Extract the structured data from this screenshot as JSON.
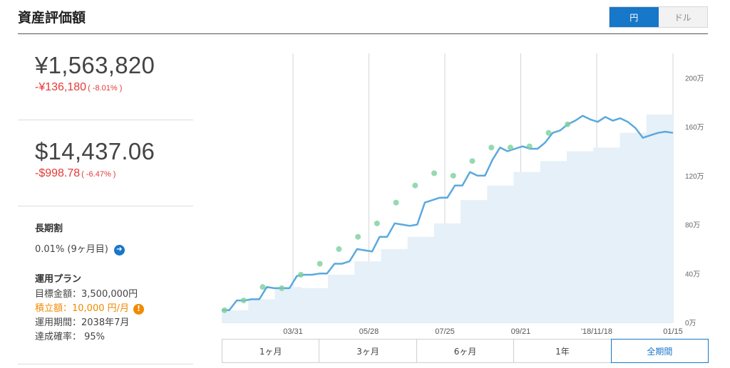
{
  "header": {
    "title": "資産評価額"
  },
  "currency_toggle": {
    "yen_label": "円",
    "usd_label": "ドル",
    "selected": "円",
    "accent_color": "#1777c8"
  },
  "jpy": {
    "value": "¥1,563,820",
    "change": "-¥136,180",
    "change_pct": "( -8.01% )"
  },
  "usd": {
    "value": "$14,437.06",
    "change": "-$998.78",
    "change_pct": "( -6.47% )"
  },
  "longterm": {
    "title": "長期割",
    "value": "0.01% (9ヶ月目)"
  },
  "plan": {
    "title": "運用プラン",
    "target": "目標金額：3,500,000円",
    "monthly": "積立額：10,000 円/月",
    "period": "運用期間：2038年7月",
    "probability": "達成確率：  95%"
  },
  "colors": {
    "negative": "#e53935",
    "warning": "#f08a00",
    "line": "#5aa9dd",
    "area": "#e6f0f8",
    "marker": "#7ccf9e"
  },
  "icons": {
    "longterm_arrow": "arrow-right-icon",
    "monthly_warning": "warning-icon"
  },
  "range_tabs": [
    "1ヶ月",
    "3ヶ月",
    "6ヶ月",
    "1年",
    "全期間"
  ],
  "range_selected": "全期間",
  "chart_data": {
    "type": "line",
    "x_ticks": [
      "03/31",
      "05/28",
      "07/25",
      "09/21",
      "'18/11/18",
      "01/15"
    ],
    "y_ticks": [
      "0万",
      "40万",
      "80万",
      "120万",
      "160万",
      "200万"
    ],
    "ylim": [
      0,
      2200000
    ],
    "y_unit": "万",
    "grid": "vertical",
    "series": [
      {
        "values": [
          100000,
          100000,
          180000,
          180000,
          190000,
          190000,
          290000,
          280000,
          280000,
          280000,
          380000,
          390000,
          390000,
          400000,
          400000,
          480000,
          480000,
          500000,
          600000,
          590000,
          580000,
          700000,
          700000,
          810000,
          800000,
          790000,
          800000,
          980000,
          1000000,
          1020000,
          1020000,
          1120000,
          1120000,
          1230000,
          1200000,
          1200000,
          1330000,
          1430000,
          1400000,
          1420000,
          1440000,
          1420000,
          1420000,
          1470000,
          1550000,
          1570000,
          1620000,
          1650000,
          1690000,
          1660000,
          1640000,
          1680000,
          1650000,
          1670000,
          1640000,
          1590000,
          1510000,
          1530000,
          1550000,
          1560000,
          1550000
        ]
      }
    ],
    "deposit_levels": [
      100000,
      190000,
      290000,
      280000,
      390000,
      500000,
      600000,
      700000,
      810000,
      1000000,
      1120000,
      1230000,
      1320000,
      1400000,
      1430000,
      1550000,
      1700000
    ],
    "markers": [
      100000,
      180000,
      290000,
      280000,
      390000,
      480000,
      600000,
      700000,
      810000,
      980000,
      1120000,
      1220000,
      1200000,
      1320000,
      1430000,
      1430000,
      1440000,
      1550000,
      1620000
    ]
  }
}
